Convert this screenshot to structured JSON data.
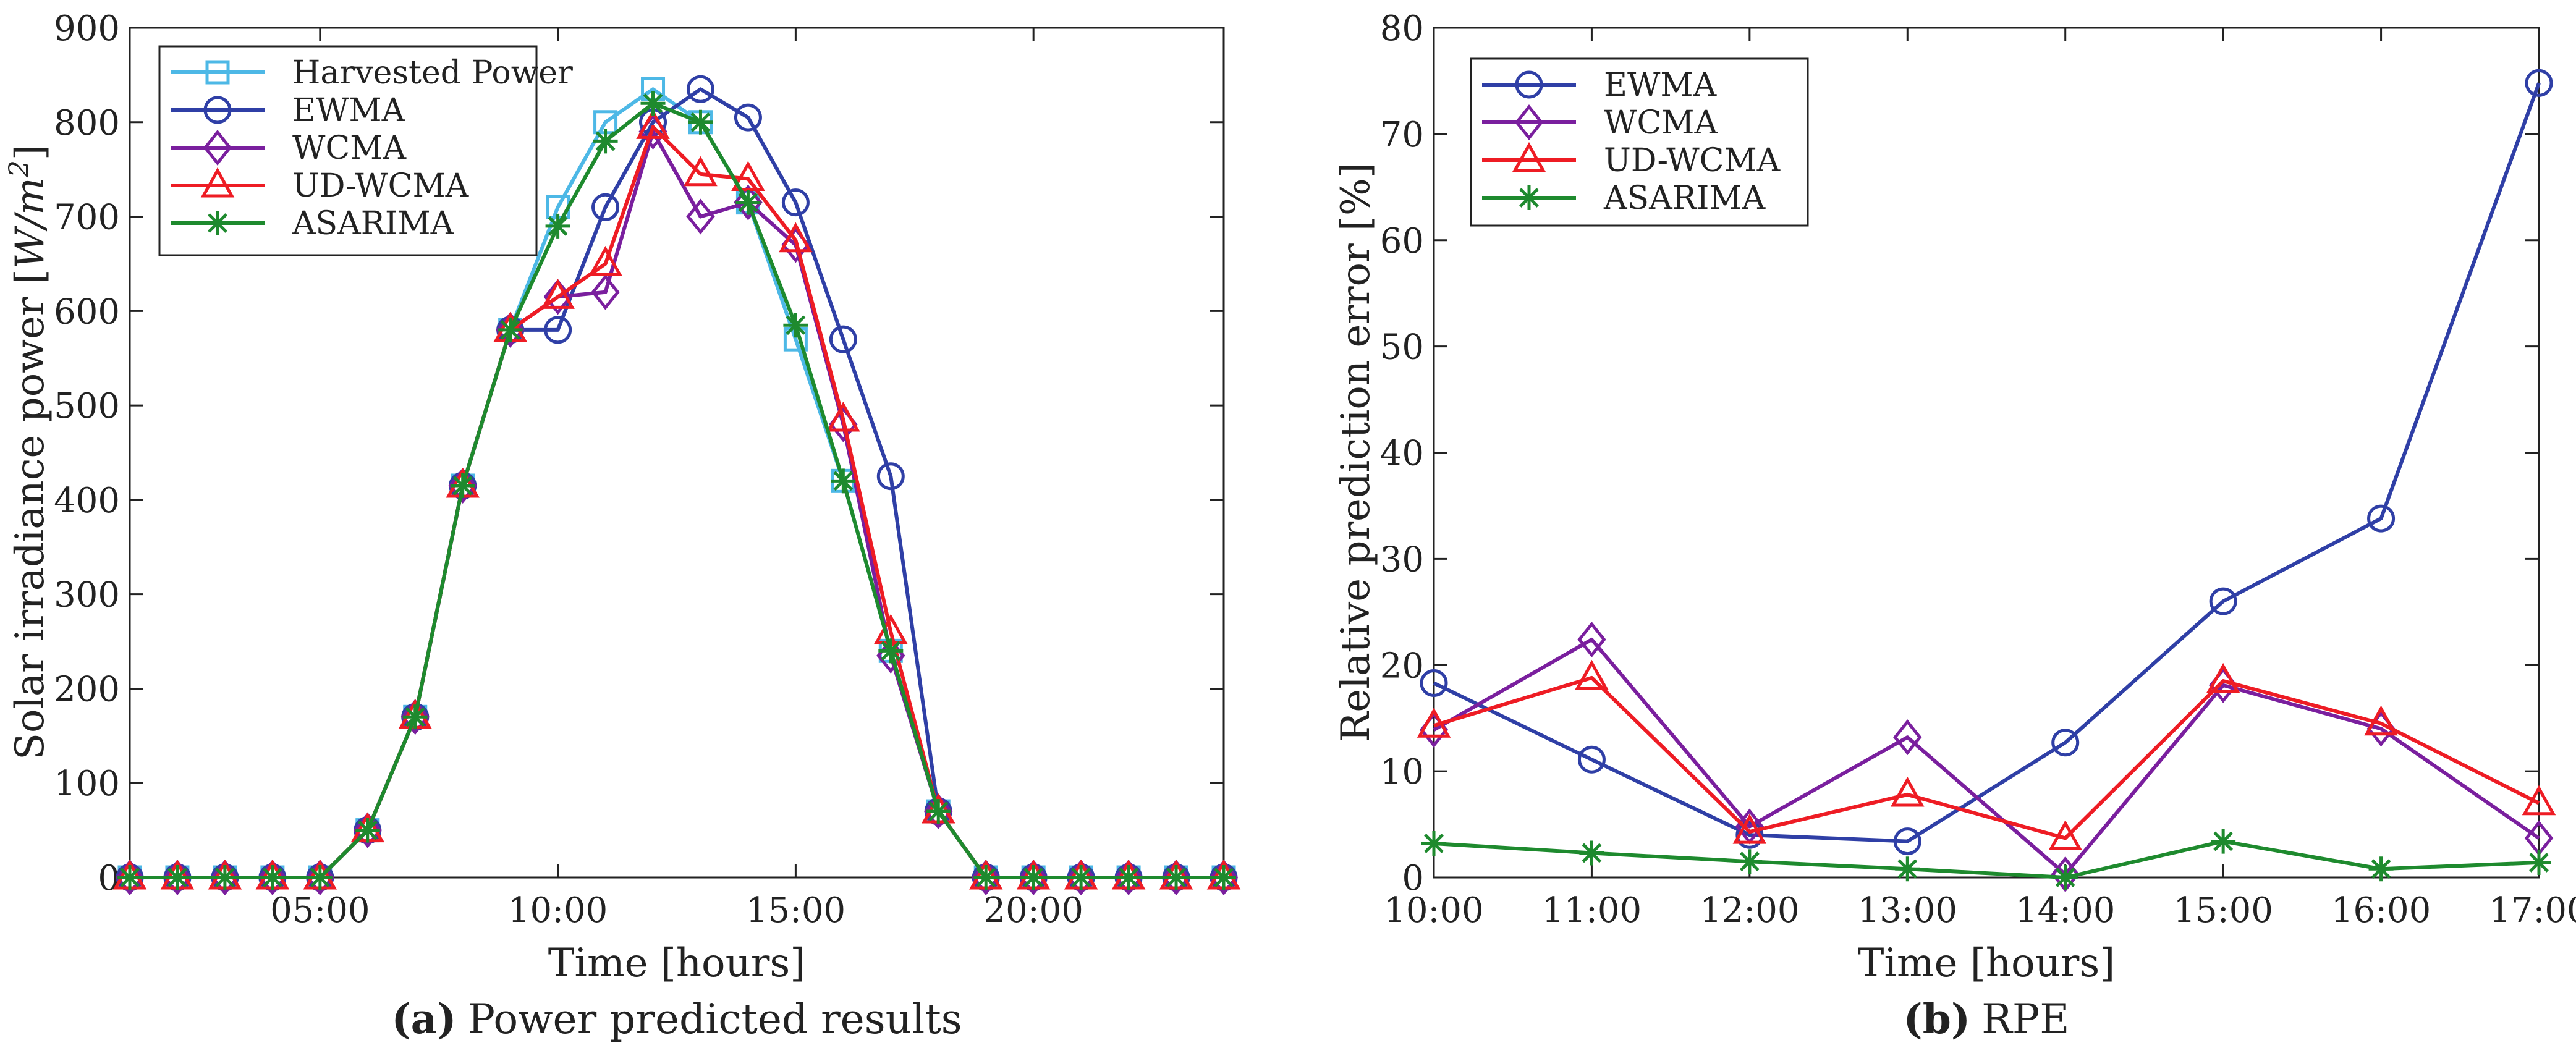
{
  "colors": {
    "harvested": "#4db8e6",
    "ewma": "#2f3fa6",
    "wcma": "#7a1f9e",
    "udwcma": "#ee1c24",
    "asarima": "#1e8a2e",
    "axis": "#222222"
  },
  "chart_data": [
    {
      "type": "line",
      "panel": "a",
      "caption_letter": "(a)",
      "caption_text": "Power predicted results",
      "xlabel": "Time [hours]",
      "ylabel": "Solar irradiance power [",
      "ylabel_unit": "W/m",
      "ylabel_exp": "2",
      "ylabel_close": "]",
      "xlim": [
        0,
        23
      ],
      "ylim": [
        0,
        900
      ],
      "yticks": [
        0,
        100,
        200,
        300,
        400,
        500,
        600,
        700,
        800,
        900
      ],
      "ytick_labels": [
        "0",
        "100",
        "200",
        "300",
        "400",
        "500",
        "600",
        "700",
        "800",
        "900"
      ],
      "xticks": [
        4,
        9,
        14,
        19
      ],
      "xtick_labels": [
        "05:00",
        "10:00",
        "15:00",
        "20:00"
      ],
      "legend_position": "top-left",
      "x": [
        0,
        1,
        2,
        3,
        4,
        5,
        6,
        7,
        8,
        9,
        10,
        11,
        12,
        13,
        14,
        15,
        16,
        17,
        18,
        19,
        20,
        21,
        22,
        23
      ],
      "series": [
        {
          "name": "Harvested Power",
          "key": "harvested",
          "marker": "square",
          "values": [
            0,
            0,
            0,
            0,
            0,
            50,
            170,
            415,
            580,
            710,
            800,
            835,
            800,
            715,
            570,
            420,
            240,
            70,
            0,
            0,
            0,
            0,
            0,
            0
          ]
        },
        {
          "name": "EWMA",
          "key": "ewma",
          "marker": "circle",
          "values": [
            0,
            0,
            0,
            0,
            0,
            50,
            170,
            415,
            580,
            580,
            710,
            800,
            835,
            805,
            715,
            570,
            425,
            70,
            0,
            0,
            0,
            0,
            0,
            0
          ]
        },
        {
          "name": "WCMA",
          "key": "wcma",
          "marker": "diamond",
          "values": [
            0,
            0,
            0,
            0,
            0,
            50,
            170,
            415,
            580,
            615,
            620,
            790,
            700,
            715,
            670,
            480,
            235,
            70,
            0,
            0,
            0,
            0,
            0,
            0
          ]
        },
        {
          "name": "UD-WCMA",
          "key": "udwcma",
          "marker": "triangle",
          "values": [
            0,
            0,
            0,
            0,
            0,
            50,
            170,
            415,
            580,
            615,
            650,
            795,
            745,
            740,
            675,
            485,
            260,
            70,
            0,
            0,
            0,
            0,
            0,
            0
          ]
        },
        {
          "name": "ASARIMA",
          "key": "asarima",
          "marker": "star",
          "values": [
            0,
            0,
            0,
            0,
            0,
            50,
            170,
            415,
            580,
            690,
            780,
            820,
            800,
            715,
            585,
            420,
            240,
            70,
            0,
            0,
            0,
            0,
            0,
            0
          ]
        }
      ]
    },
    {
      "type": "line",
      "panel": "b",
      "caption_letter": "(b)",
      "caption_text": "RPE",
      "xlabel": "Time [hours]",
      "ylabel": "Relative prediction error [%]",
      "xlim": [
        0,
        7
      ],
      "ylim": [
        0,
        80
      ],
      "yticks": [
        0,
        10,
        20,
        30,
        40,
        50,
        60,
        70,
        80
      ],
      "ytick_labels": [
        "0",
        "10",
        "20",
        "30",
        "40",
        "50",
        "60",
        "70",
        "80"
      ],
      "xticks": [
        0,
        1,
        2,
        3,
        4,
        5,
        6,
        7
      ],
      "xtick_labels": [
        "10:00",
        "11:00",
        "12:00",
        "13:00",
        "14:00",
        "15:00",
        "16:00",
        "17:00"
      ],
      "legend_position": "top-left",
      "series": [
        {
          "name": "EWMA",
          "key": "ewma",
          "marker": "circle",
          "values": [
            18.3,
            11.1,
            4.0,
            3.4,
            12.7,
            26.0,
            33.8,
            74.8
          ]
        },
        {
          "name": "WCMA",
          "key": "wcma",
          "marker": "diamond",
          "values": [
            13.9,
            22.4,
            4.8,
            13.2,
            0.3,
            18.1,
            14.0,
            3.7
          ]
        },
        {
          "name": "UD-WCMA",
          "key": "udwcma",
          "marker": "triangle",
          "values": [
            14.3,
            18.8,
            4.3,
            7.8,
            3.7,
            18.5,
            14.5,
            7.0
          ]
        },
        {
          "name": "ASARIMA",
          "key": "asarima",
          "marker": "star",
          "values": [
            3.2,
            2.3,
            1.5,
            0.8,
            0.0,
            3.4,
            0.8,
            1.4
          ]
        }
      ]
    }
  ]
}
